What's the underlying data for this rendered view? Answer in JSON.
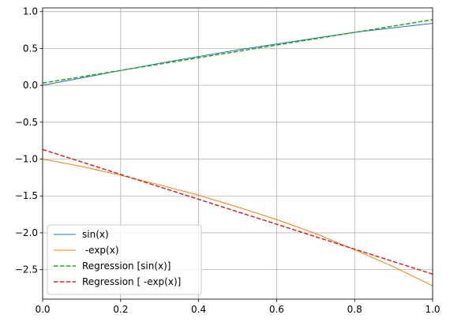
{
  "chart_data": {
    "type": "line",
    "xlim": [
      0,
      1
    ],
    "ylim": [
      -2.9,
      1.05
    ],
    "grid": true,
    "legend_position": "lower-left",
    "x_ticks": [
      0.0,
      0.2,
      0.4,
      0.6,
      0.8,
      1.0
    ],
    "x_tick_labels": [
      "0.0",
      "0.2",
      "0.4",
      "0.6",
      "0.8",
      "1.0"
    ],
    "y_ticks": [
      1.0,
      0.5,
      0.0,
      -0.5,
      -1.0,
      -1.5,
      -2.0,
      -2.5
    ],
    "y_tick_labels": [
      "1.0",
      "0.5",
      "0.0",
      "−0.5",
      "−1.0",
      "−1.5",
      "−2.0",
      "−2.5"
    ],
    "series": [
      {
        "name": "sin(x)",
        "color": "#1f77b4",
        "style": "solid",
        "x": [
          0.0,
          0.1,
          0.2,
          0.3,
          0.4,
          0.5,
          0.6,
          0.7,
          0.8,
          0.9,
          1.0
        ],
        "y": [
          0.0,
          0.1,
          0.2,
          0.3,
          0.39,
          0.48,
          0.56,
          0.64,
          0.72,
          0.78,
          0.84
        ]
      },
      {
        "name": " -exp(x)",
        "color": "#ff7f0e",
        "style": "solid",
        "x": [
          0.0,
          0.1,
          0.2,
          0.3,
          0.4,
          0.5,
          0.6,
          0.7,
          0.8,
          0.9,
          1.0
        ],
        "y": [
          -1.0,
          -1.1,
          -1.22,
          -1.35,
          -1.49,
          -1.65,
          -1.82,
          -2.01,
          -2.23,
          -2.46,
          -2.72
        ]
      },
      {
        "name": "Regression [sin(x)]",
        "color": "#2ca02c",
        "style": "dashed",
        "x": [
          0.0,
          1.0
        ],
        "y": [
          0.03,
          0.89
        ]
      },
      {
        "name": "Regression [ -exp(x)]",
        "color": "#d62728",
        "style": "dashed",
        "x": [
          0.0,
          1.0
        ],
        "y": [
          -0.87,
          -2.56
        ]
      }
    ]
  }
}
